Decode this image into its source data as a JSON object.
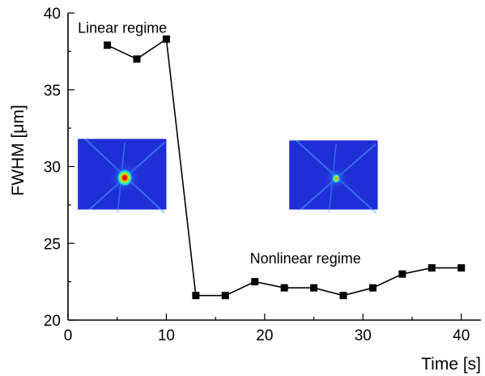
{
  "chart_data": {
    "type": "line",
    "xlabel": "Time [s]",
    "ylabel": "FWHM [μm]",
    "xlim": [
      0,
      42
    ],
    "ylim": [
      20,
      40
    ],
    "xticks": [
      0,
      10,
      20,
      30,
      40
    ],
    "yticks": [
      20,
      25,
      30,
      35,
      40
    ],
    "grid": false,
    "legend": "none",
    "series": [
      {
        "color": "#000000",
        "marker": "square",
        "x": [
          4,
          7,
          10,
          13,
          16,
          19,
          22,
          25,
          28,
          31,
          34,
          37,
          40
        ],
        "y": [
          37.9,
          37.0,
          38.3,
          21.6,
          21.6,
          22.5,
          22.1,
          22.1,
          21.6,
          22.1,
          23.0,
          23.4,
          23.4
        ]
      }
    ],
    "annotations": [
      {
        "text": "Linear regime",
        "x": 1,
        "y": 38.7
      },
      {
        "text": "Nonlinear regime",
        "x": 18.5,
        "y": 23.7
      }
    ],
    "insets": [
      {
        "name": "linear-beam-image",
        "x_range": [
          1,
          10
        ],
        "y_range": [
          27.2,
          31.8
        ],
        "spot_size": "large",
        "background": "#1f2ed6"
      },
      {
        "name": "nonlinear-beam-image",
        "x_range": [
          22.5,
          31.5
        ],
        "y_range": [
          27.2,
          31.7
        ],
        "spot_size": "small",
        "background": "#1f2ed6"
      }
    ]
  }
}
